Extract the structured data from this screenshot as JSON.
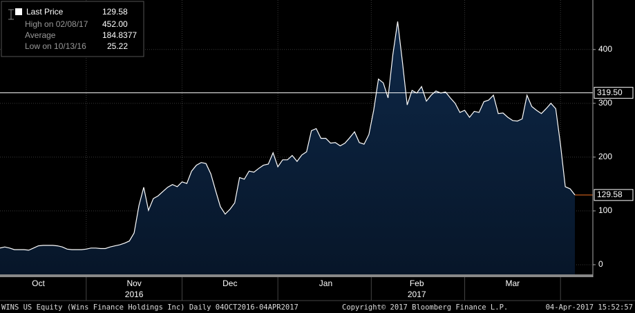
{
  "chart_data": {
    "type": "area",
    "legend": {
      "title": "Last Price",
      "last": 129.58,
      "stats": [
        {
          "label": "High on 02/08/17",
          "value": 452,
          "value_label": "452.00"
        },
        {
          "label": "Average",
          "value": 184.8377
        },
        {
          "label": "Low on 10/13/16",
          "value": 25.22
        }
      ]
    },
    "categories": [
      null,
      null,
      null,
      null,
      null,
      null,
      null,
      null,
      "Oct",
      null,
      null,
      null,
      null,
      null,
      null,
      null,
      null,
      null,
      null,
      null,
      null,
      null,
      null,
      null,
      null,
      null,
      null,
      null,
      "Nov",
      null,
      null,
      null,
      null,
      null,
      null,
      null,
      null,
      null,
      null,
      null,
      null,
      null,
      null,
      null,
      null,
      null,
      null,
      null,
      "Dec",
      null,
      null,
      null,
      null,
      null,
      null,
      null,
      null,
      null,
      null,
      null,
      null,
      null,
      null,
      null,
      null,
      null,
      null,
      null,
      "Jan",
      null,
      null,
      null,
      null,
      null,
      null,
      null,
      null,
      null,
      null,
      null,
      null,
      null,
      null,
      null,
      null,
      null,
      null,
      "Feb",
      null,
      null,
      null,
      null,
      null,
      null,
      null,
      null,
      null,
      null,
      null,
      null,
      null,
      null,
      null,
      null,
      null,
      null,
      null,
      "Mar",
      null,
      null,
      null,
      null,
      null,
      null,
      null,
      null,
      null,
      null,
      null,
      null,
      null
    ],
    "sublabels": [
      {
        "index": 28,
        "label": "2016"
      },
      {
        "index": 87,
        "label": "2017"
      }
    ],
    "values": [
      31,
      33,
      31,
      28,
      28,
      28,
      27,
      31,
      35,
      36,
      36,
      36,
      35,
      33,
      29,
      28,
      28,
      28,
      29,
      31,
      31,
      30,
      30,
      33,
      35,
      37,
      40,
      44,
      59,
      110,
      144,
      101,
      123,
      128,
      136,
      144,
      149,
      145,
      154,
      151,
      174,
      185,
      190,
      188,
      169,
      138,
      108,
      94,
      103,
      115,
      162,
      159,
      174,
      172,
      179,
      185,
      187,
      208,
      182,
      195,
      195,
      203,
      192,
      204,
      210,
      249,
      253,
      235,
      235,
      226,
      227,
      221,
      226,
      236,
      247,
      227,
      224,
      242,
      287,
      345,
      338,
      310,
      390,
      452,
      377,
      297,
      324,
      319,
      331,
      304,
      315,
      323,
      319,
      321,
      310,
      300,
      283,
      287,
      274,
      285,
      283,
      303,
      306,
      315,
      281,
      282,
      274,
      268,
      267,
      271,
      315,
      294,
      287,
      281,
      290,
      300,
      290,
      223,
      145,
      141,
      129.58
    ],
    "color": "#ffffff",
    "fill": "#0e2848",
    "ylim": [
      -18,
      492
    ],
    "yticks": [
      0,
      100,
      200,
      300,
      400
    ],
    "grid": true,
    "reference_line": {
      "value": 319.5,
      "label": "319.50"
    },
    "last_tag": {
      "value": 129.58,
      "color": "#f07020"
    },
    "footer": {
      "left": "WINS US Equity (Wins Finance Holdings Inc)  Daily 04OCT2016-04APR2017",
      "center": "Copyright© 2017 Bloomberg Finance L.P.",
      "right": "04-Apr-2017 15:52:57"
    }
  }
}
